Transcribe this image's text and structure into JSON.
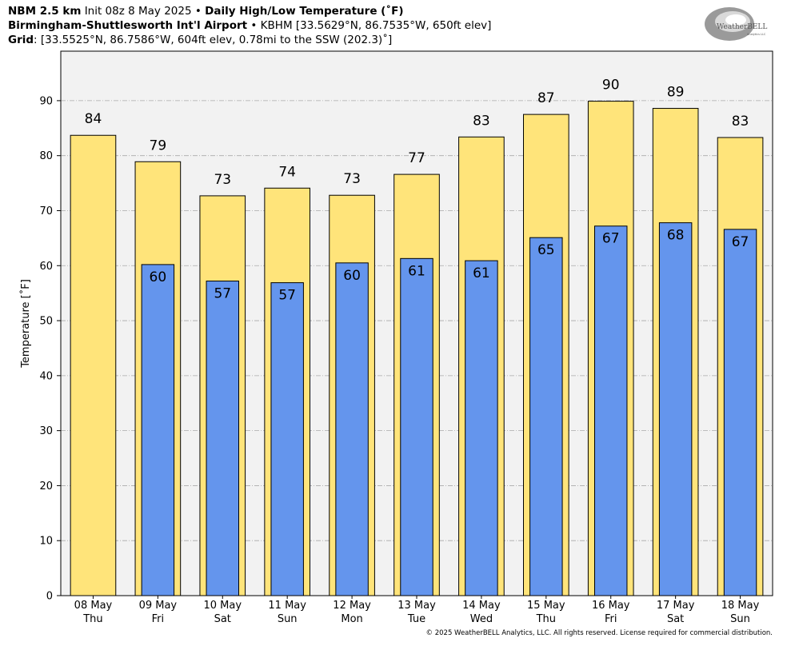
{
  "header": {
    "line1_model": "NBM 2.5 km",
    "line1_init": "Init 08z 8 May 2025",
    "line1_sep": "•",
    "line1_product": "Daily High/Low Temperature (˚F)",
    "line2_station": "Birmingham-Shuttlesworth Int'l Airport",
    "line2_sep": "•",
    "line2_coords": "KBHM [33.5629°N, 86.7535°W, 650ft elev]",
    "line3_label": "Grid",
    "line3_text": ": [33.5525°N, 86.7586°W, 604ft elev, 0.78mi to the SSW (202.3)˚]"
  },
  "logo": {
    "text": "WeatherBELL",
    "subtext": "Analytics LLC"
  },
  "footer": "© 2025 WeatherBELL Analytics, LLC. All rights reserved. License required for commercial distribution.",
  "colors": {
    "high": "#FFE47A",
    "low": "#6495ED",
    "plot_bg": "#F2F2F2",
    "grid": "#AAAAAA"
  },
  "chart_data": {
    "type": "bar",
    "ylabel": "Temperature [˚F]",
    "ylim": [
      0,
      99
    ],
    "yticks": [
      0,
      10,
      20,
      30,
      40,
      50,
      60,
      70,
      80,
      90
    ],
    "grid": true,
    "categories": [
      [
        "08 May",
        "Thu"
      ],
      [
        "09 May",
        "Fri"
      ],
      [
        "10 May",
        "Sat"
      ],
      [
        "11 May",
        "Sun"
      ],
      [
        "12 May",
        "Mon"
      ],
      [
        "13 May",
        "Tue"
      ],
      [
        "14 May",
        "Wed"
      ],
      [
        "15 May",
        "Thu"
      ],
      [
        "16 May",
        "Fri"
      ],
      [
        "17 May",
        "Sat"
      ],
      [
        "18 May",
        "Sun"
      ]
    ],
    "high_values": [
      83.7,
      78.9,
      72.7,
      74.1,
      72.8,
      76.6,
      83.4,
      87.5,
      89.9,
      88.6,
      83.3
    ],
    "high_labels": [
      "84",
      "79",
      "73",
      "74",
      "73",
      "77",
      "83",
      "87",
      "90",
      "89",
      "83"
    ],
    "low_values": [
      null,
      60.2,
      57.2,
      56.9,
      60.5,
      61.3,
      60.9,
      65.1,
      67.2,
      67.8,
      66.6
    ],
    "low_labels": [
      "",
      "60",
      "57",
      "57",
      "60",
      "61",
      "61",
      "65",
      "67",
      "68",
      "67"
    ]
  }
}
